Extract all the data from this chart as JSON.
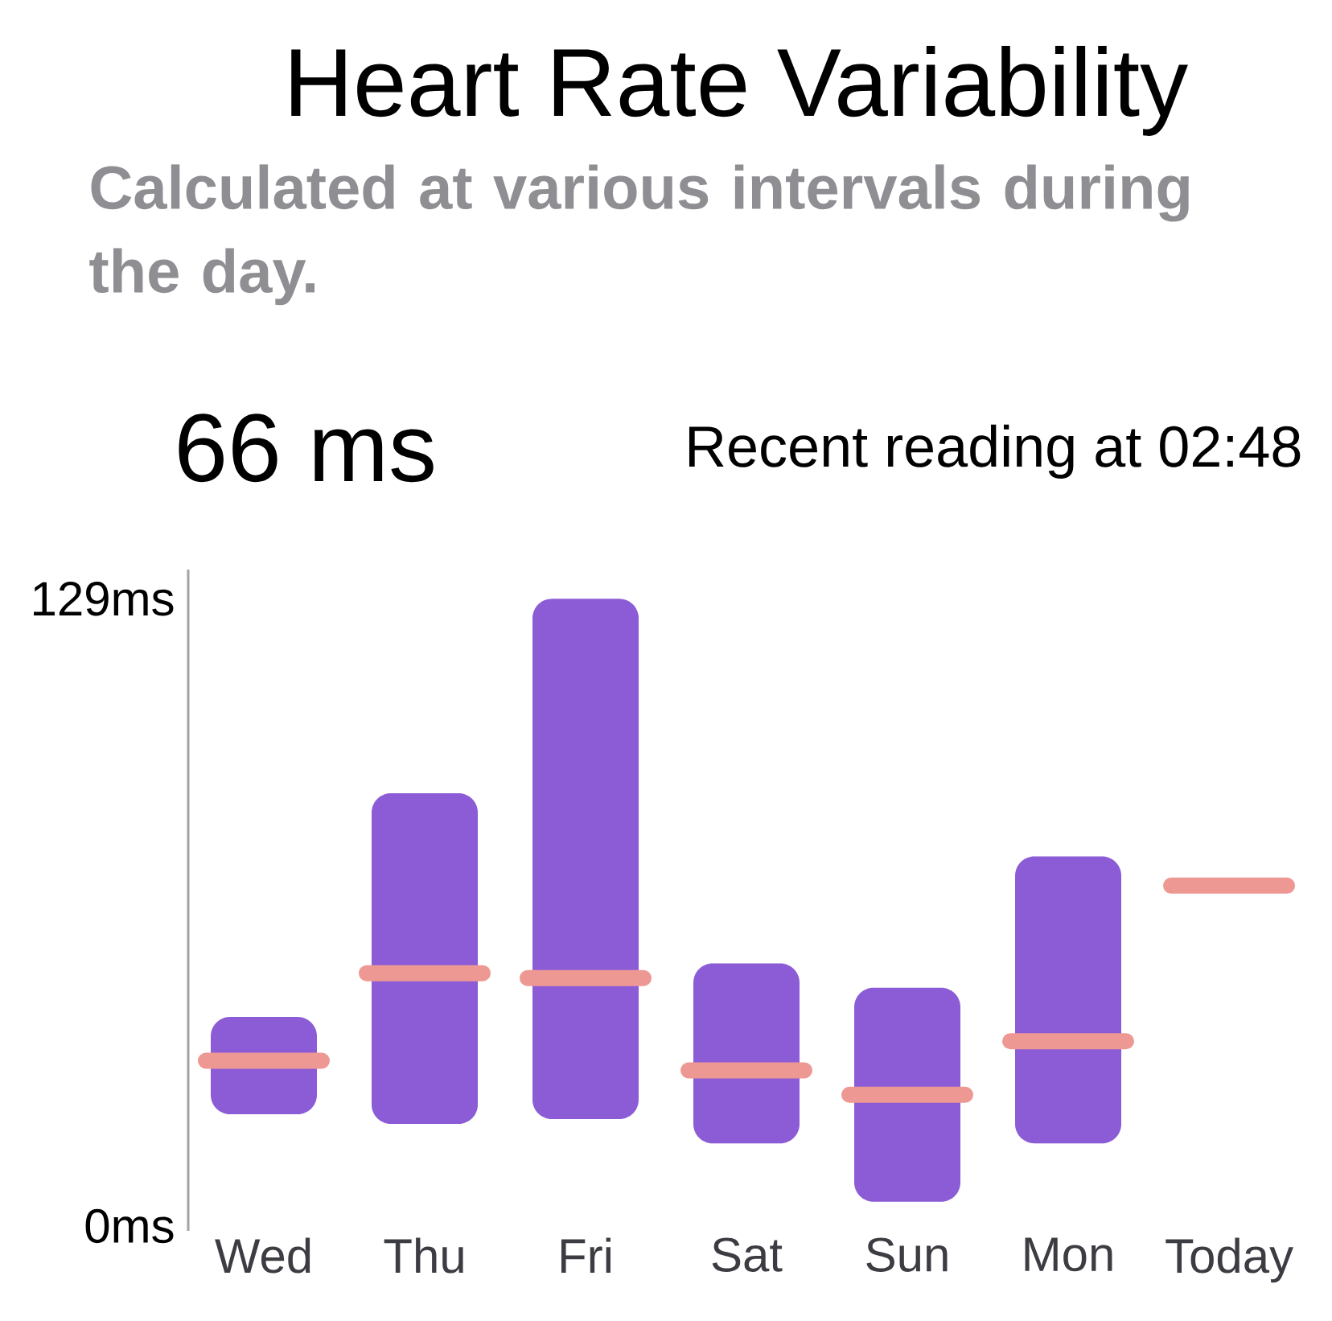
{
  "chart_data": {
    "type": "box",
    "title": "Heart Rate Variability",
    "subtitle": "Calculated at various intervals during the day.",
    "annotations": [
      "66 ms",
      "Recent reading at 02:48"
    ],
    "categories": [
      "Wed",
      "Thu",
      "Fri",
      "Sat",
      "Sun",
      "Mon",
      "Today"
    ],
    "series": [
      {
        "colors": [
          "#8b5cd6",
          "#8b5cd6",
          "#8b5cd6",
          "#8b5cd6",
          "#8b5cd6",
          "#8b5cd6",
          "#ee9893"
        ],
        "boxes": [
          {
            "low": 23,
            "q1": 23,
            "median": 34,
            "q3": 43,
            "high": 43
          },
          {
            "low": 21,
            "q1": 21,
            "median": 52,
            "q3": 89,
            "high": 89
          },
          {
            "low": 22,
            "q1": 22,
            "median": 51,
            "q3": 129,
            "high": 129
          },
          {
            "low": 17,
            "q1": 17,
            "median": 32,
            "q3": 54,
            "high": 54
          },
          {
            "low": 5,
            "q1": 5,
            "median": 27,
            "q3": 49,
            "high": 49
          },
          {
            "low": 17,
            "q1": 17,
            "median": 38,
            "q3": 76,
            "high": 76
          },
          {
            "low": 70,
            "q1": 70,
            "median": 70,
            "q3": 70,
            "high": 70
          }
        ]
      }
    ],
    "ylim": [
      -1,
      135
    ],
    "yticks": [
      {
        "value": 0,
        "label": "0ms"
      },
      {
        "value": 129,
        "label": "129ms"
      }
    ]
  }
}
